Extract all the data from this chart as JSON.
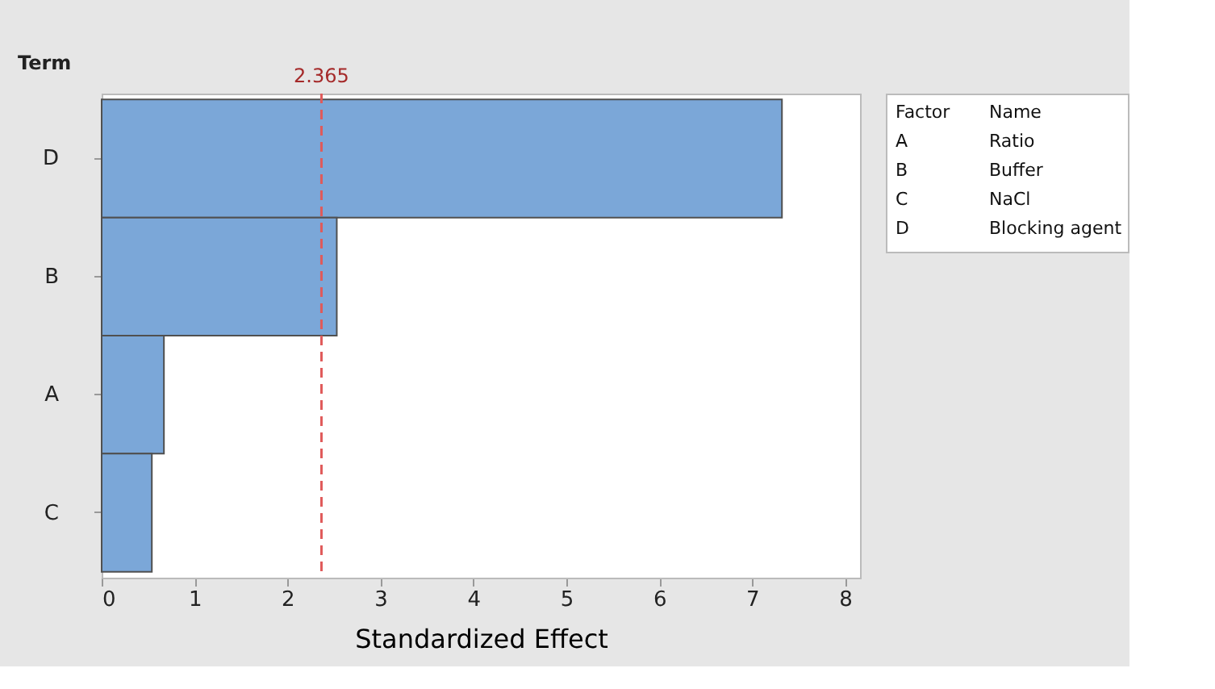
{
  "chart_data": {
    "type": "bar",
    "orientation": "horizontal",
    "ylabel": "Term",
    "xlabel": "Standardized Effect",
    "categories": [
      "D",
      "B",
      "A",
      "C"
    ],
    "values": [
      7.32,
      2.53,
      0.67,
      0.54
    ],
    "color": "#7ba7d8",
    "xlim": [
      0,
      8.16
    ],
    "xticks": [
      0,
      1,
      2,
      3,
      4,
      5,
      6,
      7,
      8
    ],
    "ref_lines": [
      {
        "axis": "x",
        "value": 2.365,
        "label": "2.365",
        "color": "#e05a5a",
        "line_style": "dashed"
      }
    ],
    "annotations": [
      "Factor",
      "Name",
      "A",
      "Ratio",
      "B",
      "Buffer",
      "C",
      "NaCl",
      "D",
      "Blocking agent"
    ],
    "grid": false
  }
}
